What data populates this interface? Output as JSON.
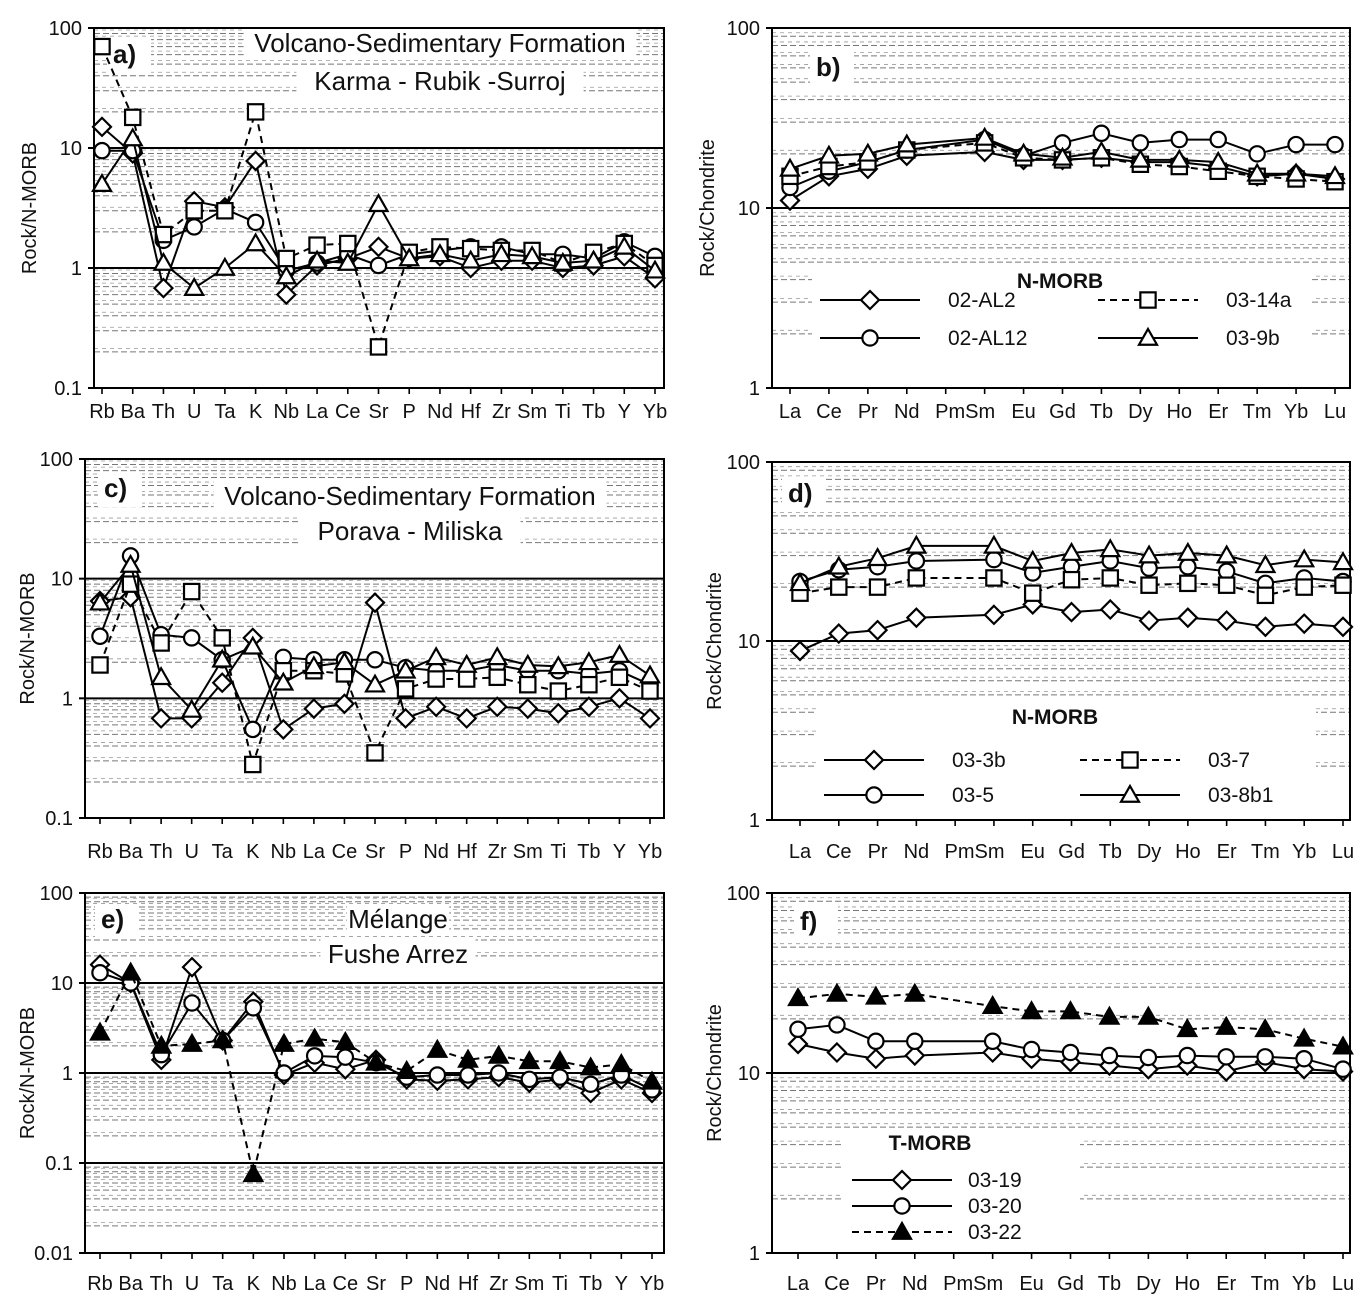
{
  "chart_data": [
    {
      "id": "a",
      "type": "line",
      "log": true,
      "panel_label": "a)",
      "title_lines": [
        "Volcano-Sedimentary Formation",
        "Karma - Rubik -Surroj"
      ],
      "ylabel": "Rock/N-MORB",
      "xlabel": "",
      "ylim": [
        0.1,
        100
      ],
      "yticks": [
        "0.1",
        "1",
        "10",
        "100"
      ],
      "categories": [
        "Rb",
        "Ba",
        "Th",
        "U",
        "Ta",
        "K",
        "Nb",
        "La",
        "Ce",
        "Sr",
        "P",
        "Nd",
        "Hf",
        "Zr",
        "Sm",
        "Ti",
        "Tb",
        "Y",
        "Yb"
      ],
      "x_labels": [
        "Rb",
        "Ba",
        "Th",
        "U",
        "Ta",
        "K",
        "Nb",
        "La",
        "Ce",
        "Sr",
        "P",
        "Nd",
        "Hf",
        "Zr",
        "Sm",
        "Ti",
        "Tb",
        "Y",
        "Yb"
      ],
      "legend": null,
      "series": [
        {
          "marker": "diamond",
          "dash": "solid",
          "values": [
            15,
            9,
            0.68,
            3.6,
            3.2,
            7.8,
            0.6,
            1.05,
            1.2,
            1.5,
            1.2,
            1.25,
            1.0,
            1.15,
            1.15,
            1.0,
            1.05,
            1.25,
            0.82
          ]
        },
        {
          "marker": "circle",
          "dash": "solid",
          "values": [
            9.5,
            9.5,
            1.7,
            2.2,
            3.1,
            2.4,
            0.95,
            1.1,
            1.3,
            1.05,
            1.3,
            1.4,
            1.5,
            1.5,
            1.3,
            1.3,
            1.2,
            1.65,
            1.25
          ]
        },
        {
          "marker": "square",
          "dash": "dashed",
          "values": [
            70,
            18,
            1.9,
            3.0,
            3.0,
            20,
            1.2,
            1.55,
            1.6,
            0.22,
            1.35,
            1.5,
            1.45,
            1.4,
            1.4,
            1.1,
            1.35,
            1.6,
            1.05
          ]
        },
        {
          "marker": "triangle",
          "dash": "solid",
          "values": [
            5,
            12,
            1.1,
            0.68,
            1.0,
            1.6,
            0.85,
            1.15,
            1.1,
            3.4,
            1.2,
            1.3,
            1.15,
            1.3,
            1.25,
            1.1,
            1.15,
            1.5,
            0.95
          ]
        }
      ]
    },
    {
      "id": "b",
      "type": "line",
      "log": true,
      "panel_label": "b)",
      "title_lines": [],
      "ylabel": "Rock/Chondrite",
      "xlabel": "",
      "ylim": [
        1,
        100
      ],
      "yticks": [
        "1",
        "10",
        "100"
      ],
      "categories": [
        "La",
        "Ce",
        "Pr",
        "Nd",
        "Pm",
        "Sm",
        "Eu",
        "Gd",
        "Tb",
        "Dy",
        "Ho",
        "Er",
        "Tm",
        "Yb",
        "Lu"
      ],
      "x_labels": [
        "La",
        "Ce",
        "Pr",
        "Nd",
        "PmSm",
        "Eu",
        "Gd",
        "Tb",
        "Dy",
        "Ho",
        "Er",
        "Tm",
        "Yb",
        "Lu"
      ],
      "legend": {
        "title": "N-MORB",
        "entries": [
          {
            "label": "02-AL2",
            "marker": "diamond",
            "dash": "solid"
          },
          {
            "label": "03-14a",
            "marker": "square",
            "dash": "dashed"
          },
          {
            "label": "02-AL12",
            "marker": "circle",
            "dash": "solid"
          },
          {
            "label": "03-9b",
            "marker": "triangle",
            "dash": "solid"
          }
        ]
      },
      "series": [
        {
          "marker": "diamond",
          "dash": "solid",
          "values": [
            11,
            15,
            16.5,
            19.5,
            null,
            20.5,
            18.5,
            18.5,
            19,
            18,
            18,
            17,
            15,
            15.5,
            14.5
          ]
        },
        {
          "marker": "circle",
          "dash": "solid",
          "values": [
            13,
            16,
            18,
            21,
            null,
            24,
            19.5,
            23,
            26,
            23,
            24,
            24,
            20,
            22.5,
            22.5
          ]
        },
        {
          "marker": "square",
          "dash": "dashed",
          "values": [
            15,
            17,
            18,
            21,
            null,
            23,
            19,
            18.5,
            19,
            17.5,
            17,
            16,
            15,
            14.5,
            14
          ]
        },
        {
          "marker": "triangle",
          "dash": "solid",
          "values": [
            16.5,
            19.5,
            20,
            22.5,
            null,
            24.5,
            20,
            19,
            20.5,
            18.5,
            18.5,
            18,
            15.5,
            15.5,
            15
          ]
        }
      ]
    },
    {
      "id": "c",
      "type": "line",
      "log": true,
      "panel_label": "c)",
      "title_lines": [
        "Volcano-Sedimentary Formation",
        "Porava - Miliska"
      ],
      "ylabel": "Rock/N-MORB",
      "xlabel": "",
      "ylim": [
        0.1,
        100
      ],
      "yticks": [
        "0.1",
        "1",
        "10",
        "100"
      ],
      "categories": [
        "Rb",
        "Ba",
        "Th",
        "U",
        "Ta",
        "K",
        "Nb",
        "La",
        "Ce",
        "Sr",
        "P",
        "Nd",
        "Hf",
        "Zr",
        "Sm",
        "Ti",
        "Tb",
        "Y",
        "Yb"
      ],
      "x_labels": [
        "Rb",
        "Ba",
        "Th",
        "U",
        "Ta",
        "K",
        "Nb",
        "La",
        "Ce",
        "Sr",
        "P",
        "Nd",
        "Hf",
        "Zr",
        "Sm",
        "Ti",
        "Tb",
        "Y",
        "Yb"
      ],
      "legend": null,
      "series": [
        {
          "marker": "diamond",
          "dash": "solid",
          "values": [
            6.5,
            7,
            0.68,
            0.68,
            1.35,
            3.2,
            0.55,
            0.82,
            0.9,
            6.3,
            0.68,
            0.85,
            0.68,
            0.85,
            0.82,
            0.75,
            0.85,
            1.0,
            0.68
          ]
        },
        {
          "marker": "circle",
          "dash": "solid",
          "values": [
            3.3,
            15.5,
            3.4,
            3.2,
            2.1,
            0.55,
            2.2,
            2.1,
            2.1,
            2.1,
            1.8,
            1.7,
            1.7,
            1.9,
            1.7,
            1.7,
            1.6,
            1.7,
            1.3
          ]
        },
        {
          "marker": "square",
          "dash": "dashed",
          "values": [
            1.9,
            9,
            2.9,
            7.8,
            3.2,
            0.28,
            1.7,
            1.7,
            1.6,
            0.35,
            1.2,
            1.45,
            1.45,
            1.5,
            1.3,
            1.15,
            1.3,
            1.5,
            1.15
          ]
        },
        {
          "marker": "triangle",
          "dash": "solid",
          "values": [
            6.3,
            13,
            1.5,
            0.8,
            2.1,
            2.7,
            1.35,
            1.85,
            2.0,
            1.3,
            1.7,
            2.2,
            1.9,
            2.2,
            1.9,
            1.85,
            2.0,
            2.3,
            1.55
          ]
        }
      ]
    },
    {
      "id": "d",
      "type": "line",
      "log": true,
      "panel_label": "d)",
      "title_lines": [],
      "ylabel": "Rock/Chondrite",
      "xlabel": "",
      "ylim": [
        1,
        100
      ],
      "yticks": [
        "1",
        "10",
        "100"
      ],
      "categories": [
        "La",
        "Ce",
        "Pr",
        "Nd",
        "Pm",
        "Sm",
        "Eu",
        "Gd",
        "Tb",
        "Dy",
        "Ho",
        "Er",
        "Tm",
        "Yb",
        "Lu"
      ],
      "x_labels": [
        "La",
        "Ce",
        "Pr",
        "Nd",
        "PmSm",
        "Eu",
        "Gd",
        "Tb",
        "Dy",
        "Ho",
        "Er",
        "Tm",
        "Yb",
        "Lu"
      ],
      "legend": {
        "title": "N-MORB",
        "entries": [
          {
            "label": "03-3b",
            "marker": "diamond",
            "dash": "solid"
          },
          {
            "label": "03-7",
            "marker": "square",
            "dash": "dashed"
          },
          {
            "label": "03-5",
            "marker": "circle",
            "dash": "solid"
          },
          {
            "label": "03-8b1",
            "marker": "triangle",
            "dash": "solid"
          }
        ]
      },
      "series": [
        {
          "marker": "diamond",
          "dash": "solid",
          "values": [
            8.8,
            11,
            11.5,
            13.5,
            null,
            14,
            16,
            14.5,
            15,
            13,
            13.5,
            13,
            12,
            12.5,
            12
          ]
        },
        {
          "marker": "circle",
          "dash": "solid",
          "values": [
            21.5,
            25,
            26,
            28,
            null,
            28.5,
            24,
            26,
            28,
            25.5,
            26,
            24.5,
            21,
            22.5,
            21.5
          ]
        },
        {
          "marker": "square",
          "dash": "dashed",
          "values": [
            18.5,
            20,
            20,
            22.5,
            null,
            22.5,
            18.5,
            22,
            22.5,
            20.5,
            21,
            20.5,
            18,
            20,
            20.5
          ]
        },
        {
          "marker": "triangle",
          "dash": "solid",
          "values": [
            21,
            26,
            29,
            34,
            null,
            34,
            28,
            31,
            32.5,
            30,
            31,
            30,
            26.5,
            28.5,
            27.5
          ]
        }
      ]
    },
    {
      "id": "e",
      "type": "line",
      "log": true,
      "panel_label": "e)",
      "title_lines": [
        "Mélange",
        "Fushe Arrez"
      ],
      "ylabel": "Rock/N-MORB",
      "xlabel": "",
      "ylim": [
        0.01,
        100
      ],
      "yticks": [
        "0.01",
        "0.1",
        "1",
        "10",
        "100"
      ],
      "categories": [
        "Rb",
        "Ba",
        "Th",
        "U",
        "Ta",
        "K",
        "Nb",
        "La",
        "Ce",
        "Sr",
        "P",
        "Nd",
        "Hf",
        "Zr",
        "Sm",
        "Ti",
        "Tb",
        "Y",
        "Yb"
      ],
      "x_labels": [
        "Rb",
        "Ba",
        "Th",
        "U",
        "Ta",
        "K",
        "Nb",
        "La",
        "Ce",
        "Sr",
        "P",
        "Nd",
        "Hf",
        "Zr",
        "Sm",
        "Ti",
        "Tb",
        "Y",
        "Yb"
      ],
      "legend": null,
      "series": [
        {
          "marker": "diamond",
          "dash": "solid",
          "values": [
            16,
            10,
            1.4,
            15,
            2.3,
            6.2,
            0.95,
            1.3,
            1.1,
            1.4,
            0.85,
            0.82,
            0.85,
            0.9,
            0.78,
            0.85,
            0.6,
            0.85,
            0.6
          ]
        },
        {
          "marker": "circle",
          "dash": "solid",
          "values": [
            13,
            10,
            1.6,
            6,
            2.3,
            5.3,
            1.0,
            1.55,
            1.5,
            1.3,
            0.9,
            0.95,
            0.95,
            1.0,
            0.85,
            0.9,
            0.75,
            0.95,
            0.65
          ]
        },
        {
          "marker": "triangle-filled",
          "dash": "dashed",
          "values": [
            2.8,
            13,
            2.0,
            2.1,
            2.3,
            0.075,
            2.1,
            2.4,
            2.2,
            1.3,
            1.05,
            1.8,
            1.4,
            1.55,
            1.35,
            1.35,
            1.15,
            1.25,
            0.8
          ]
        }
      ]
    },
    {
      "id": "f",
      "type": "line",
      "log": true,
      "panel_label": "f)",
      "title_lines": [],
      "ylabel": "Rock/Chondrite",
      "xlabel": "",
      "ylim": [
        1,
        100
      ],
      "yticks": [
        "1",
        "10",
        "100"
      ],
      "categories": [
        "La",
        "Ce",
        "Pr",
        "Nd",
        "Pm",
        "Sm",
        "Eu",
        "Gd",
        "Tb",
        "Dy",
        "Ho",
        "Er",
        "Tm",
        "Yb",
        "Lu"
      ],
      "x_labels": [
        "La",
        "Ce",
        "Pr",
        "Nd",
        "PmSm",
        "Eu",
        "Gd",
        "Tb",
        "Dy",
        "Ho",
        "Er",
        "Tm",
        "Yb",
        "Lu"
      ],
      "legend": {
        "title": "T-MORB",
        "entries": [
          {
            "label": "03-19",
            "marker": "diamond",
            "dash": "solid"
          },
          {
            "label": "03-20",
            "marker": "circle",
            "dash": "solid"
          },
          {
            "label": "03-22",
            "marker": "triangle-filled",
            "dash": "dashed"
          }
        ]
      },
      "series": [
        {
          "marker": "diamond",
          "dash": "solid",
          "values": [
            14.5,
            13,
            12,
            12.5,
            null,
            13,
            12,
            11.5,
            11,
            10.5,
            11,
            10.2,
            11.5,
            10.5,
            10.2
          ]
        },
        {
          "marker": "circle",
          "dash": "solid",
          "values": [
            17.5,
            18.5,
            15,
            15,
            null,
            15,
            13.5,
            13,
            12.5,
            12.2,
            12.5,
            12.3,
            12.3,
            12,
            10.5
          ]
        },
        {
          "marker": "triangle-filled",
          "dash": "dashed",
          "values": [
            26,
            27.5,
            26.5,
            27.5,
            null,
            23.5,
            22,
            22,
            20.5,
            20.5,
            17.5,
            18,
            17.5,
            15.5,
            14
          ]
        }
      ]
    }
  ]
}
